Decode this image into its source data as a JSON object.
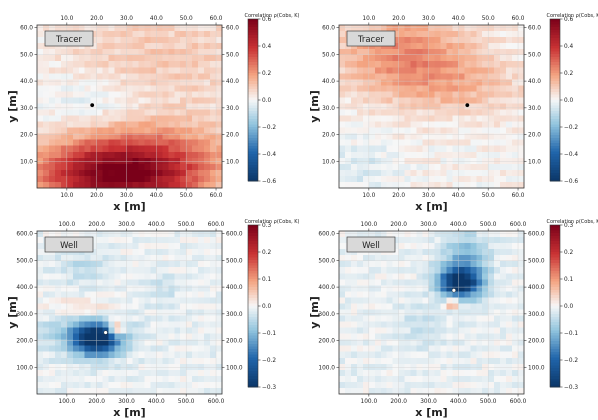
{
  "colors": {
    "negative": "#0b3668",
    "zero": "#f7f7f7",
    "positive": "#7a0019",
    "grid": "#d0d0d0",
    "frame": "#333333",
    "label_box_fill": "#d9d9d9",
    "marker_dark": "#000000",
    "marker_light": "#ffffff"
  },
  "chart_data": [
    {
      "type": "heatmap",
      "panel": "top-left",
      "box_label": "Tracer",
      "xlabel": "x [m]",
      "ylabel": "y [m]",
      "colorbar_label": "Correlation ρ(Cobs, K)",
      "xlim": [
        0,
        62
      ],
      "ylim": [
        0,
        61
      ],
      "bottom_ticks": [
        "10.0",
        "20.0",
        "30.0",
        "40.0",
        "50.0",
        "60.0"
      ],
      "top_ticks": [
        "10.0",
        "20.0",
        "30.0",
        "40.0",
        "50.0",
        "60.0"
      ],
      "left_ticks": [
        "10.0",
        "20.0",
        "30.0",
        "40.0",
        "50.0",
        "60.0"
      ],
      "right_ticks": [
        "10.0",
        "20.0",
        "30.0",
        "40.0",
        "50.0",
        "60.0"
      ],
      "tick_values_x": [
        10,
        20,
        30,
        40,
        50,
        60
      ],
      "tick_values_y": [
        10,
        20,
        30,
        40,
        50,
        60
      ],
      "colorbar_ticks": [
        "0.6",
        "0.4",
        "0.2",
        "0.0",
        "−0.2",
        "−0.4",
        "−0.6"
      ],
      "colorbar_values": [
        0.6,
        0.4,
        0.2,
        0.0,
        -0.2,
        -0.4,
        -0.6
      ],
      "vmin": -0.6,
      "vmax": 0.6,
      "grid": true,
      "marker": {
        "x": 18.5,
        "y": 31.0,
        "style": "dark"
      },
      "field": {
        "base": 0.0,
        "blobs": [
          {
            "x": 27,
            "y": 5,
            "sx": 20,
            "sy": 9,
            "amp": 0.6
          },
          {
            "x": 45,
            "y": 15,
            "sx": 22,
            "sy": 10,
            "amp": 0.12
          },
          {
            "x": 40,
            "y": 50,
            "sx": 30,
            "sy": 18,
            "amp": 0.12
          },
          {
            "x": 20,
            "y": 33,
            "sx": 12,
            "sy": 7,
            "amp": -0.07
          }
        ]
      }
    },
    {
      "type": "heatmap",
      "panel": "top-right",
      "box_label": "Tracer",
      "xlabel": "x [m]",
      "ylabel": "y [m]",
      "colorbar_label": "Correlation ρ(Cobs, K)",
      "xlim": [
        0,
        62
      ],
      "ylim": [
        0,
        61
      ],
      "bottom_ticks": [
        "10.0",
        "20.0",
        "30.0",
        "40.0",
        "50.0",
        "60.0"
      ],
      "top_ticks": [
        "10.0",
        "20.0",
        "30.0",
        "40.0",
        "50.0",
        "60.0"
      ],
      "left_ticks": [
        "10.0",
        "20.0",
        "30.0",
        "40.0",
        "50.0",
        "60.0"
      ],
      "right_ticks": [
        "10.0",
        "20.0",
        "30.0",
        "40.0",
        "50.0",
        "60.0"
      ],
      "tick_values_x": [
        10,
        20,
        30,
        40,
        50,
        60
      ],
      "tick_values_y": [
        10,
        20,
        30,
        40,
        50,
        60
      ],
      "colorbar_ticks": [
        "0.6",
        "0.4",
        "0.2",
        "0.0",
        "−0.2",
        "−0.4",
        "−0.6"
      ],
      "colorbar_values": [
        0.6,
        0.4,
        0.2,
        0.0,
        -0.2,
        -0.4,
        -0.6
      ],
      "vmin": -0.6,
      "vmax": 0.6,
      "grid": true,
      "marker": {
        "x": 43.0,
        "y": 31.0,
        "style": "dark"
      },
      "field": {
        "base": 0.03,
        "blobs": [
          {
            "x": 22,
            "y": 50,
            "sx": 16,
            "sy": 11,
            "amp": 0.22
          },
          {
            "x": 42,
            "y": 38,
            "sx": 15,
            "sy": 8,
            "amp": 0.1
          },
          {
            "x": 8,
            "y": 8,
            "sx": 8,
            "sy": 7,
            "amp": -0.06
          }
        ]
      }
    },
    {
      "type": "heatmap",
      "panel": "bottom-left",
      "box_label": "Well",
      "xlabel": "x [m]",
      "ylabel": "y [m]",
      "colorbar_label": "Correlation ρ(Cobs, K)",
      "xlim": [
        0,
        620
      ],
      "ylim": [
        0,
        610
      ],
      "bottom_ticks": [
        "100.0",
        "200.0",
        "300.0",
        "400.0",
        "500.0",
        "600.0"
      ],
      "top_ticks": [
        "100.0",
        "200.0",
        "300.0",
        "400.0",
        "500.0",
        "600.0"
      ],
      "left_ticks": [
        "100.0",
        "200.0",
        "300.0",
        "400.0",
        "500.0",
        "600.0"
      ],
      "right_ticks": [
        "100.0",
        "200.0",
        "300.0",
        "400.0",
        "500.0",
        "600.0"
      ],
      "tick_values_x": [
        100,
        200,
        300,
        400,
        500,
        600
      ],
      "tick_values_y": [
        100,
        200,
        300,
        400,
        500,
        600
      ],
      "colorbar_ticks": [
        "0.3",
        "0.2",
        "0.1",
        "0.0",
        "−0.1",
        "−0.2",
        "−0.3"
      ],
      "colorbar_values": [
        0.3,
        0.2,
        0.1,
        0.0,
        -0.1,
        -0.2,
        -0.3
      ],
      "vmin": -0.3,
      "vmax": 0.3,
      "grid": true,
      "marker": {
        "x": 230,
        "y": 230,
        "style": "light"
      },
      "field": {
        "base": 0.0,
        "blobs": [
          {
            "x": 200,
            "y": 205,
            "sx": 55,
            "sy": 40,
            "amp": -0.32
          },
          {
            "x": 140,
            "y": 250,
            "sx": 110,
            "sy": 70,
            "amp": -0.06
          },
          {
            "x": 265,
            "y": 245,
            "sx": 18,
            "sy": 22,
            "amp": 0.18
          },
          {
            "x": 140,
            "y": 320,
            "sx": 90,
            "sy": 35,
            "amp": 0.07
          },
          {
            "x": 150,
            "y": 470,
            "sx": 55,
            "sy": 45,
            "amp": -0.04
          },
          {
            "x": 420,
            "y": 390,
            "sx": 40,
            "sy": 40,
            "amp": -0.03
          }
        ]
      }
    },
    {
      "type": "heatmap",
      "panel": "bottom-right",
      "box_label": "Well",
      "xlabel": "x [m]",
      "ylabel": "y [m]",
      "colorbar_label": "Correlation ρ(Cobs, K)",
      "xlim": [
        0,
        620
      ],
      "ylim": [
        0,
        610
      ],
      "bottom_ticks": [
        "100.0",
        "200.0",
        "300.0",
        "400.0",
        "500.0",
        "600.0"
      ],
      "top_ticks": [
        "100.0",
        "200.0",
        "300.0",
        "400.0",
        "500.0",
        "600.0"
      ],
      "left_ticks": [
        "100.0",
        "200.0",
        "300.0",
        "400.0",
        "500.0",
        "600.0"
      ],
      "right_ticks": [
        "100.0",
        "200.0",
        "300.0",
        "400.0",
        "500.0",
        "600.0"
      ],
      "tick_values_x": [
        100,
        200,
        300,
        400,
        500,
        600
      ],
      "tick_values_y": [
        100,
        200,
        300,
        400,
        500,
        600
      ],
      "colorbar_ticks": [
        "0.3",
        "0.2",
        "0.1",
        "0.0",
        "−0.1",
        "−0.2",
        "−0.3"
      ],
      "colorbar_values": [
        0.3,
        0.2,
        0.1,
        0.0,
        -0.1,
        -0.2,
        -0.3
      ],
      "vmin": -0.3,
      "vmax": 0.3,
      "grid": true,
      "marker": {
        "x": 385,
        "y": 388,
        "style": "light"
      },
      "field": {
        "base": 0.0,
        "blobs": [
          {
            "x": 405,
            "y": 415,
            "sx": 48,
            "sy": 38,
            "amp": -0.3
          },
          {
            "x": 420,
            "y": 500,
            "sx": 55,
            "sy": 70,
            "amp": -0.1
          },
          {
            "x": 380,
            "y": 340,
            "sx": 16,
            "sy": 16,
            "amp": 0.14
          },
          {
            "x": 280,
            "y": 250,
            "sx": 60,
            "sy": 55,
            "amp": -0.03
          }
        ]
      }
    }
  ]
}
